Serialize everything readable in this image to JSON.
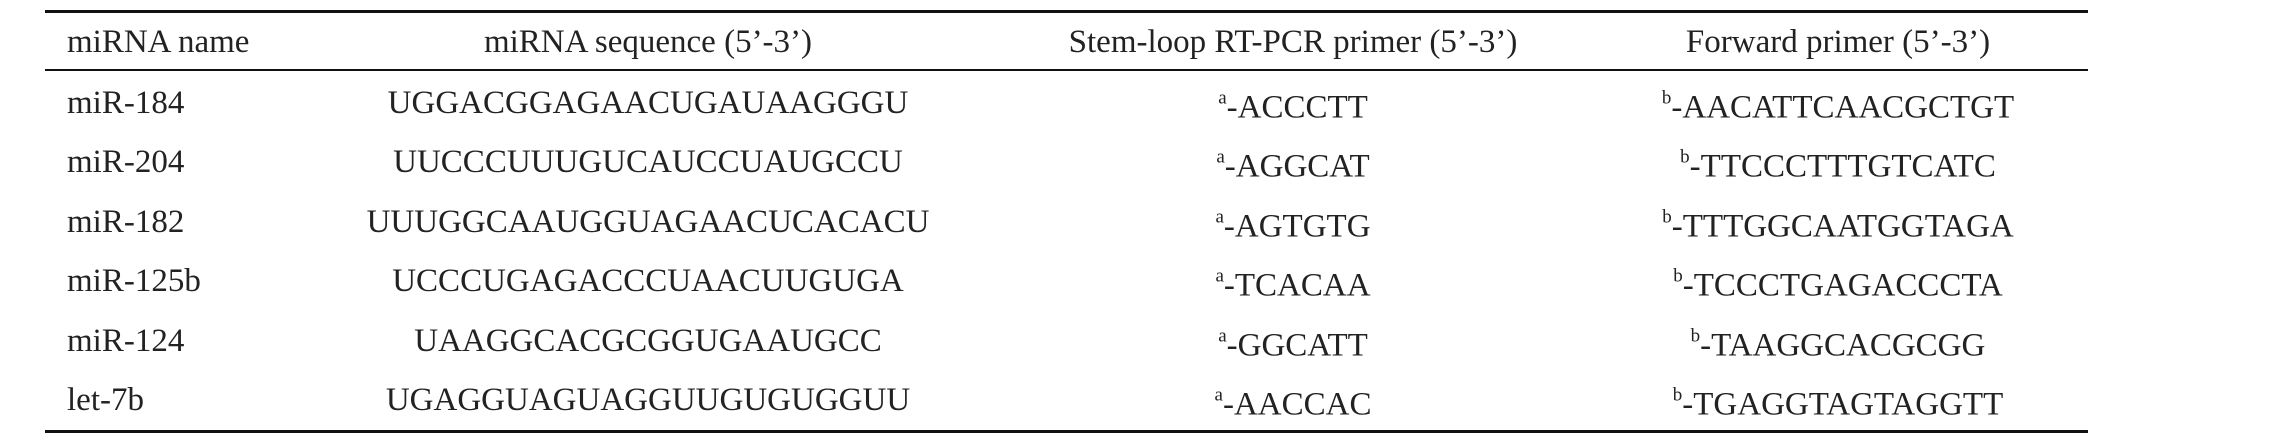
{
  "table": {
    "header": [
      "miRNA name",
      "miRNA sequence (5’-3’)",
      "Stem-loop RT-PCR primer (5’-3’)",
      "Forward primer (5’-3’)"
    ],
    "rows": [
      [
        "miR-184",
        "UGGACGGAGAACUGAUAAGGGU",
        {
          "sup": "a",
          "text": "-ACCCTT"
        },
        {
          "sup": "b",
          "text": "-AACATTCAACGCTGT"
        }
      ],
      [
        "miR-204",
        "UUCCCUUUGUCAUCCUAUGCCU",
        {
          "sup": "a",
          "text": "-AGGCAT"
        },
        {
          "sup": "b",
          "text": "-TTCCCTTTGTCATC"
        }
      ],
      [
        "miR-182",
        "UUUGGCAAUGGUAGAACUCACACU",
        {
          "sup": "a",
          "text": "-AGTGTG"
        },
        {
          "sup": "b",
          "text": "-TTTGGCAATGGTAGA"
        }
      ],
      [
        "miR-125b",
        "UCCCUGAGACCCUAACUUGUGA",
        {
          "sup": "a",
          "text": "-TCACAA"
        },
        {
          "sup": "b",
          "text": "-TCCCTGAGACCCTA"
        }
      ],
      [
        "miR-124",
        "UAAGGCACGCGGUGAAUGCC",
        {
          "sup": "a",
          "text": "-GGCATT"
        },
        {
          "sup": "b",
          "text": "-TAAGGCACGCGG"
        }
      ],
      [
        "let-7b",
        "UGAGGUAGUAGGUUGUGUGGUU",
        {
          "sup": "a",
          "text": "-AACCAC"
        },
        {
          "sup": "b",
          "text": "-TGAGGTAGTAGGTT"
        }
      ]
    ]
  }
}
